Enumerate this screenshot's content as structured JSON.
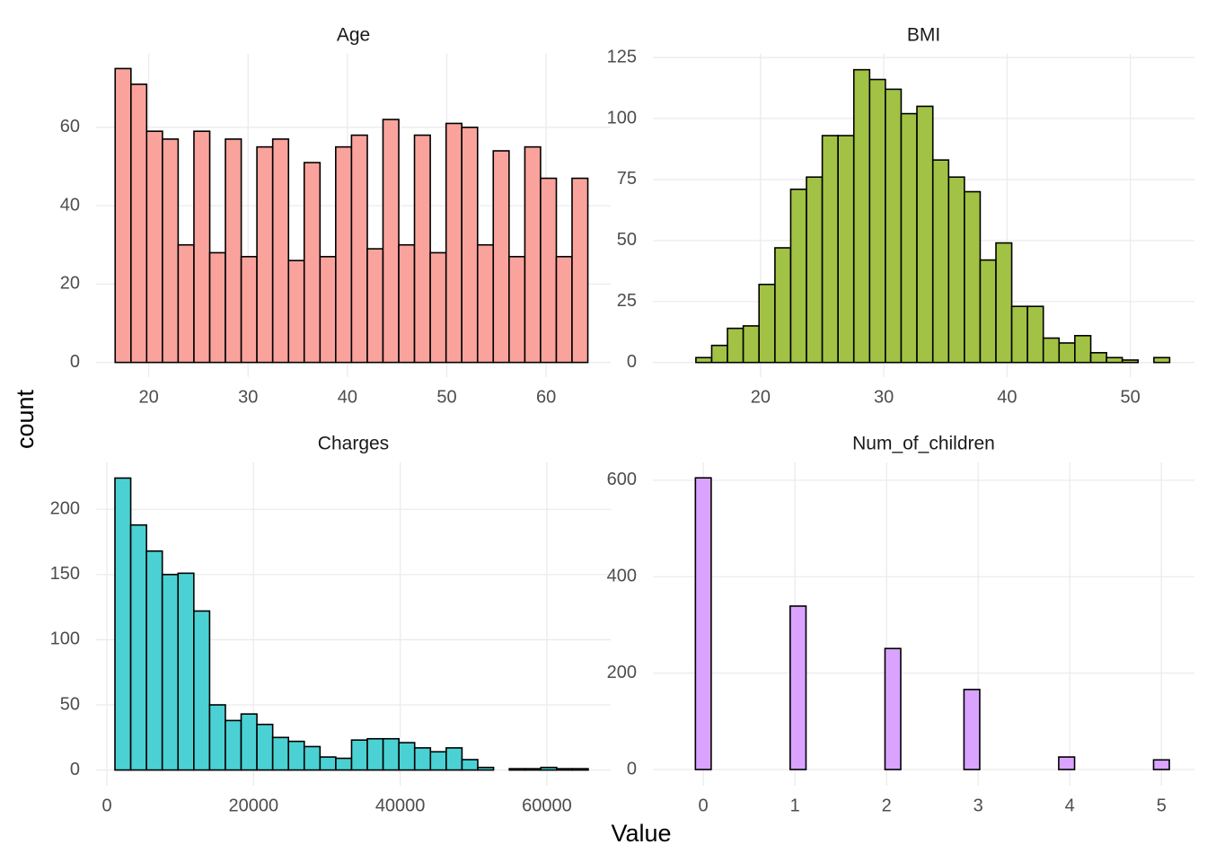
{
  "xlabel": "Value",
  "ylabel": "count",
  "chart_data": [
    {
      "type": "histogram",
      "title": "Age",
      "color": "#faa39c",
      "grid": true,
      "bins": [
        16.62,
        18.21,
        19.79,
        21.38,
        22.96,
        24.55,
        26.14,
        27.72,
        29.31,
        30.89,
        32.48,
        34.07,
        35.65,
        37.24,
        38.82,
        40.41,
        42.0,
        43.58,
        45.17,
        46.75,
        48.34,
        49.93,
        51.51,
        53.1,
        54.68,
        56.27,
        57.86,
        59.44,
        61.03,
        62.61,
        64.2
      ],
      "values": [
        75,
        71,
        59,
        57,
        30,
        59,
        28,
        57,
        27,
        55,
        57,
        26,
        51,
        27,
        55,
        58,
        29,
        62,
        30,
        58,
        28,
        61,
        60,
        30,
        54,
        27,
        55,
        47,
        27,
        47
      ],
      "xlim": [
        14.7,
        66.5
      ],
      "ylim": [
        -3.75,
        78.75
      ],
      "xticks": [
        20,
        30,
        40,
        50,
        60
      ],
      "yticks": [
        0,
        20,
        40,
        60
      ]
    },
    {
      "type": "histogram",
      "title": "BMI",
      "color": "#a2c245",
      "grid": true,
      "bins": [
        14.76,
        16.04,
        17.32,
        18.6,
        19.88,
        21.17,
        22.45,
        23.73,
        25.01,
        26.29,
        27.57,
        28.85,
        30.13,
        31.41,
        32.69,
        33.98,
        35.26,
        36.54,
        37.82,
        39.1,
        40.38,
        41.66,
        42.94,
        44.22,
        45.5,
        46.79,
        48.07,
        49.35,
        50.63,
        51.91,
        53.19
      ],
      "values": [
        2,
        7,
        14,
        15,
        32,
        47,
        71,
        76,
        93,
        93,
        120,
        116,
        112,
        102,
        105,
        83,
        76,
        70,
        42,
        49,
        23,
        23,
        10,
        8,
        11,
        4,
        2,
        1,
        0,
        2
      ],
      "xlim": [
        11.27,
        55.2
      ],
      "ylim": [
        -6,
        126.5
      ],
      "xticks": [
        20,
        30,
        40,
        50
      ],
      "yticks": [
        0,
        25,
        50,
        75,
        100,
        125
      ]
    },
    {
      "type": "histogram",
      "title": "Charges",
      "color": "#4bd1d3",
      "grid": true,
      "bins": [
        1102,
        3253,
        5404,
        7555,
        9706,
        11857,
        14008,
        16159,
        18310,
        20461,
        22612,
        24763,
        26914,
        29065,
        31216,
        33367,
        35518,
        37669,
        39820,
        41971,
        44122,
        46273,
        48424,
        50575,
        52726,
        54877,
        57028,
        59179,
        61330,
        63481,
        65632
      ],
      "values": [
        224,
        188,
        168,
        150,
        151,
        122,
        50,
        38,
        43,
        35,
        25,
        22,
        18,
        10,
        9,
        23,
        24,
        24,
        21,
        17,
        14,
        17,
        8,
        2,
        0,
        1,
        1,
        2,
        1,
        1
      ],
      "xlim": [
        -1470,
        68700
      ],
      "ylim": [
        -12,
        236
      ],
      "xticks": [
        0,
        20000,
        40000,
        60000
      ],
      "yticks": [
        0,
        50,
        100,
        150,
        200
      ]
    },
    {
      "type": "histogram",
      "title": "Num_of_children",
      "color": "#d9a3ff",
      "grid": true,
      "bins": [
        -0.086,
        0.086,
        0.259,
        0.431,
        0.603,
        0.776,
        0.948,
        1.121,
        1.293,
        1.466,
        1.638,
        1.81,
        1.983,
        2.155,
        2.328,
        2.5,
        2.672,
        2.845,
        3.017,
        3.19,
        3.362,
        3.534,
        3.707,
        3.879,
        4.052,
        4.224,
        4.397,
        4.569,
        4.741,
        4.914,
        5.086
      ],
      "values": [
        605,
        0,
        0,
        0,
        0,
        0,
        339,
        0,
        0,
        0,
        0,
        0,
        251,
        0,
        0,
        0,
        0,
        166,
        0,
        0,
        0,
        0,
        0,
        26,
        0,
        0,
        0,
        0,
        0,
        20
      ],
      "xlim": [
        -0.55,
        5.36
      ],
      "ylim": [
        -33.5,
        637
      ],
      "xticks": [
        0,
        1,
        2,
        3,
        4,
        5
      ],
      "yticks": [
        0,
        200,
        400,
        600
      ]
    }
  ]
}
